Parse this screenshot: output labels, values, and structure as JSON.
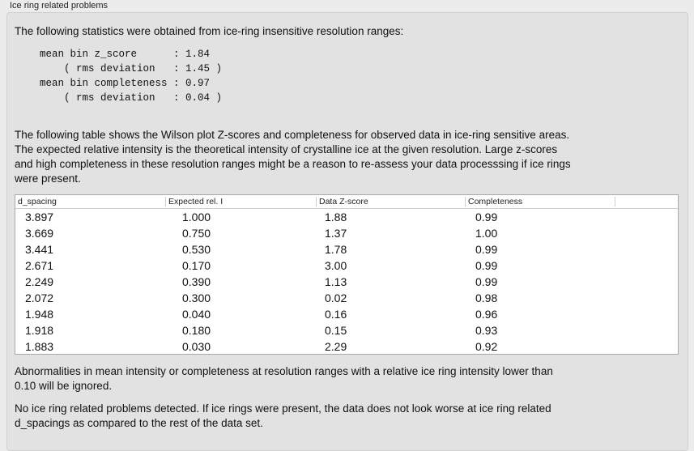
{
  "group_title": "Ice ring related problems",
  "intro": "The following statistics were obtained from ice-ring insensitive resolution ranges:",
  "stats_text": "mean bin z_score      : 1.84\n    ( rms deviation   : 1.45 )\nmean bin completeness : 0.97\n    ( rms deviation   : 0.04 )",
  "description": [
    "The following table shows the Wilson plot Z-scores and completeness for observed data in ice-ring sensitive areas.",
    "The expected relative intensity is the theoretical intensity of crystalline ice at the given resolution. Large z-scores",
    "and high completeness in these resolution ranges might be a reason to re-assess your data processsing if ice rings",
    "were present."
  ],
  "table": {
    "columns": [
      "d_spacing",
      "Expected rel. I",
      "Data Z-score",
      "Completeness"
    ],
    "rows": [
      [
        "3.897",
        "1.000",
        "1.88",
        "0.99"
      ],
      [
        "3.669",
        "0.750",
        "1.37",
        "1.00"
      ],
      [
        "3.441",
        "0.530",
        "1.78",
        "0.99"
      ],
      [
        "2.671",
        "0.170",
        "3.00",
        "0.99"
      ],
      [
        "2.249",
        "0.390",
        "1.13",
        "0.99"
      ],
      [
        "2.072",
        "0.300",
        "0.02",
        "0.98"
      ],
      [
        "1.948",
        "0.040",
        "0.16",
        "0.96"
      ],
      [
        "1.918",
        "0.180",
        "0.15",
        "0.93"
      ],
      [
        "1.883",
        "0.030",
        "2.29",
        "0.92"
      ]
    ]
  },
  "note1": [
    "Abnormalities in mean intensity or completeness at resolution ranges with a relative ice ring intensity lower than",
    "0.10 will be ignored."
  ],
  "note2": [
    "No ice ring related problems detected. If ice rings were present, the data does not look worse at ice ring related",
    "d_spacings as compared to the rest of the data set."
  ]
}
